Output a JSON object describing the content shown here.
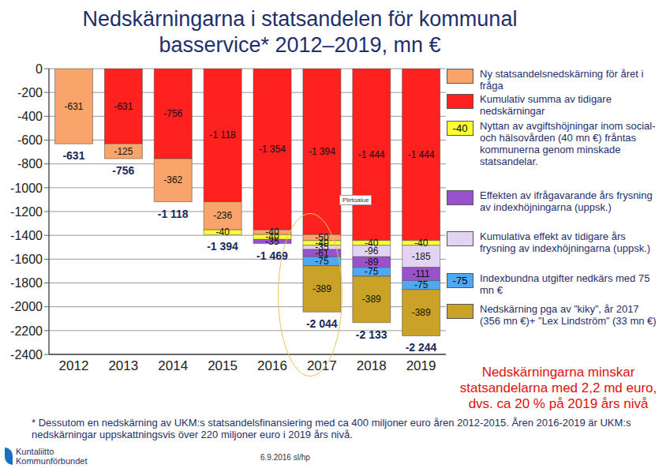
{
  "chart_data": {
    "type": "bar",
    "title": "Nedskärningarna i statsandelen för kommunal basservice* 2012–2019, mn €",
    "categories": [
      "2012",
      "2013",
      "2014",
      "2015",
      "2016",
      "2017",
      "2018",
      "2019"
    ],
    "stacked": true,
    "grid": true,
    "data_labels": true,
    "ylim": [
      -2400,
      0
    ],
    "yticks": [
      -2400,
      -2200,
      -2000,
      -1800,
      -1600,
      -1400,
      -1200,
      -1000,
      -800,
      -600,
      -400,
      -200,
      0
    ],
    "series": [
      {
        "name": "Ny statsandelsnedskärning för året i fråga",
        "color": "#f9a46a",
        "values": [
          -631,
          -125,
          -362,
          -236,
          -40,
          -50,
          null,
          null
        ]
      },
      {
        "name": "Kumulativ summa av tidigare nedskärningar",
        "color": "#ff2020",
        "values": [
          null,
          -631,
          -756,
          -1118,
          -1354,
          -1394,
          -1444,
          -1444
        ],
        "value_labels": [
          null,
          "-631",
          "-756",
          "-1 118",
          "-1 354",
          "-1 394",
          "-1 444",
          "-1 444"
        ]
      },
      {
        "name": "Nyttan av avgiftshöjningar inom social- och hälsovården (40 mn €) fråntas kommunerna genom minskade statsandelar.",
        "color": "#ffff33",
        "legend_marker": "-40",
        "values": [
          null,
          null,
          null,
          -40,
          -40,
          -40,
          -40,
          -40
        ]
      },
      {
        "name": "Effekten av ifrågavarande års frysning av indexhöjningarna (uppsk.)",
        "color": "#9b50cc",
        "values": [
          null,
          null,
          null,
          null,
          -35,
          -61,
          -89,
          -111
        ]
      },
      {
        "name": "Kumulativa effekt av tidigare års frysning av indexhöjningarna (uppsk.)",
        "color": "#e2d3f2",
        "values": [
          null,
          null,
          null,
          null,
          null,
          -35,
          -96,
          -185
        ]
      },
      {
        "name": "Indexbundna utgifter nedkärs med 75 mn €",
        "color": "#4fa8f2",
        "legend_marker": "-75",
        "values": [
          null,
          null,
          null,
          null,
          null,
          -75,
          -75,
          -75
        ]
      },
      {
        "name": "Nedskärning pga av ”kiky”, år 2017 (356 mn €)+ ”Lex Lindström” (33 mn €)",
        "color": "#c9a227",
        "values": [
          null,
          null,
          null,
          null,
          null,
          -389,
          -389,
          -389
        ]
      }
    ],
    "totals": [
      -631,
      -756,
      -1118,
      -1394,
      -1469,
      -2044,
      -2133,
      -2244
    ],
    "total_labels": [
      "-631",
      "-756",
      "-1 118",
      "-1 394",
      "-1 469",
      "-2 044",
      "-2 133",
      "-2 244"
    ],
    "annotations": {
      "summary": "Nedskärningarna minskar statsandelarna med 2,2 md euro, dvs. ca 20 % på 2019 års nivå",
      "tooltip": "Piirtoalue",
      "footnote": "* Dessutom en nedskärning av UKM:s statsandelsfinansiering med ca 400 miljoner euro åren 2012-2015. Åren 2016-2019 är UKM:s nedskärningar uppskattningsvis över 220 miljoner euro i 2019 års nivå.",
      "logo": [
        "Kuntaliitto",
        "Kommunförbundet"
      ],
      "date": "6.9.2016 sl/hp"
    }
  }
}
